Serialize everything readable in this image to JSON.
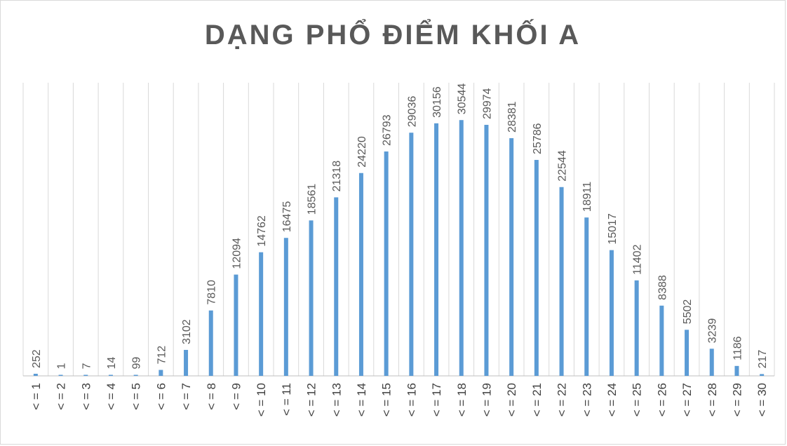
{
  "chart_data": {
    "type": "bar",
    "title": "DẠNG PHỔ ĐIỂM KHỐI A",
    "categories": [
      "<=1",
      "<=2",
      "<=3",
      "<=4",
      "<=5",
      "<=6",
      "<=7",
      "<=8",
      "<=9",
      "<=10",
      "<=11",
      "<=12",
      "<=13",
      "<=14",
      "<=15",
      "<=16",
      "<=17",
      "<=18",
      "<=19",
      "<=20",
      "<=21",
      "<=22",
      "<=23",
      "<=24",
      "<=25",
      "<=26",
      "<=27",
      "<=28",
      "<=29",
      "<=30"
    ],
    "category_labels": [
      "< = 1",
      "< = 2",
      "< = 3",
      "< = 4",
      "< = 5",
      "< = 6",
      "< = 7",
      "< = 8",
      "< = 9",
      "< = 10",
      "< = 11",
      "< = 12",
      "< = 13",
      "< = 14",
      "< = 15",
      "< = 16",
      "< = 17",
      "< = 18",
      "< = 19",
      "< = 20",
      "< = 21",
      "< = 22",
      "< = 23",
      "< = 24",
      "< = 25",
      "< = 26",
      "< = 27",
      "< = 28",
      "< = 29",
      "< = 30"
    ],
    "values": [
      252,
      1,
      7,
      14,
      99,
      712,
      3102,
      7810,
      12094,
      14762,
      16475,
      18561,
      21318,
      24220,
      26793,
      29036,
      30156,
      30544,
      29974,
      28381,
      25786,
      22544,
      18911,
      15017,
      11402,
      8388,
      5502,
      3239,
      1186,
      217
    ],
    "ylim": [
      0,
      35000
    ],
    "grid": "vertical",
    "data_labels": true,
    "colors": {
      "bar": "#5b9bd5",
      "grid": "#d9d9d9",
      "axis": "#bfbfbf",
      "title": "#595959",
      "label": "#595959"
    }
  }
}
